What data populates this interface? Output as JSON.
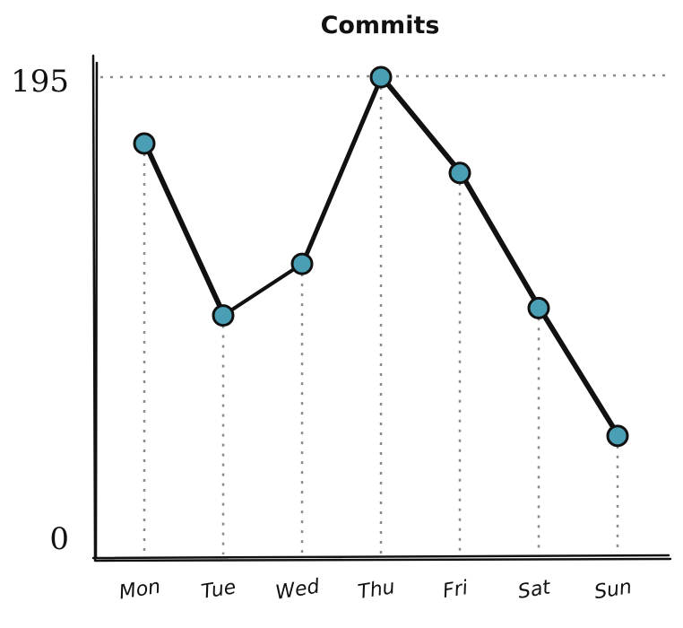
{
  "chart_data": {
    "type": "line",
    "title": "Commits",
    "xlabel": "",
    "ylabel": "",
    "categories": [
      "Mon",
      "Tue",
      "Wed",
      "Thu",
      "Fri",
      "Sat",
      "Sun"
    ],
    "series": [
      {
        "values": [
          168,
          98,
          119,
          195,
          156,
          101,
          49
        ]
      }
    ],
    "ylim": [
      0,
      195
    ],
    "yticks": [
      "0",
      "195"
    ],
    "grid": "dotted",
    "colors": {
      "point_fill": "#4a9fb5",
      "line": "#111111",
      "grid": "#8a8a8a"
    }
  }
}
